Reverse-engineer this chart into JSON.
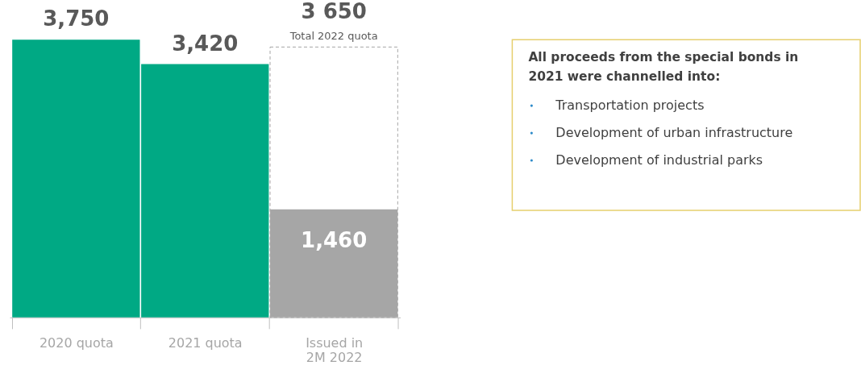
{
  "chart_data": {
    "type": "bar",
    "categories": [
      "2020 quota",
      "2021 quota",
      "Issued in\n2M 2022"
    ],
    "series": [
      {
        "line_style": "dashed",
        "color": "#a6a6a6",
        "values": [
          null,
          null,
          3650
        ],
        "value_labels": [
          null,
          null,
          "3 650"
        ]
      },
      {
        "colors": [
          "#00a984",
          "#00a984",
          "#a6a6a6"
        ],
        "values": [
          3750,
          3420,
          1460
        ],
        "value_labels": [
          "3,750",
          "3,420",
          "1,460"
        ]
      }
    ],
    "annotations": [
      "Total 2022 quota",
      "All proceeds from the special bonds in 2021 were channelled into:",
      "Transportation projects",
      "Development of urban infrastructure",
      "Development of industrial parks"
    ],
    "tick_labels": "x"
  }
}
